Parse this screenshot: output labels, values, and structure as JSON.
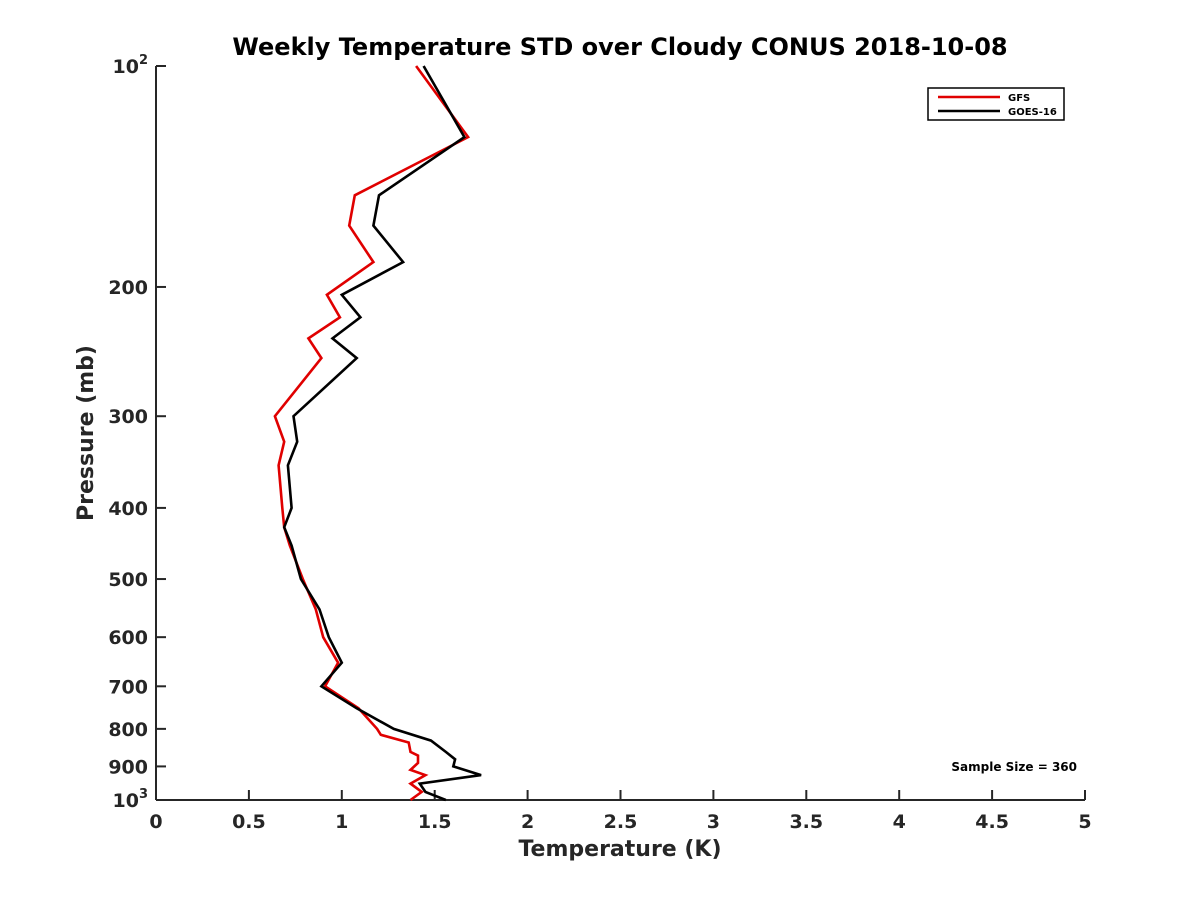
{
  "chart_data": {
    "type": "line",
    "title": "Weekly Temperature STD over Cloudy CONUS 2018-10-08",
    "xlabel": "Temperature (K)",
    "ylabel": "Pressure (mb)",
    "xlim": [
      0,
      5
    ],
    "ylim": [
      100,
      1000
    ],
    "y_scale": "log",
    "y_reversed": true,
    "x_ticks": [
      "0",
      "0.5",
      "1",
      "1.5",
      "2",
      "2.5",
      "3",
      "3.5",
      "4",
      "4.5",
      "5"
    ],
    "y_ticks": [
      {
        "value": 100,
        "base": "10",
        "exp": "2"
      },
      {
        "value": 200,
        "label": "200"
      },
      {
        "value": 300,
        "label": "300"
      },
      {
        "value": 400,
        "label": "400"
      },
      {
        "value": 500,
        "label": "500"
      },
      {
        "value": 600,
        "label": "600"
      },
      {
        "value": 700,
        "label": "700"
      },
      {
        "value": 800,
        "label": "800"
      },
      {
        "value": 900,
        "label": "900"
      },
      {
        "value": 1000,
        "base": "10",
        "exp": "3"
      }
    ],
    "legend_position": "top-right",
    "annotation": "Sample Size = 360",
    "series": [
      {
        "name": "GFS",
        "color": "#e00000",
        "points": [
          [
            1.4,
            100
          ],
          [
            1.68,
            125
          ],
          [
            1.07,
            150
          ],
          [
            1.04,
            165
          ],
          [
            1.17,
            185
          ],
          [
            0.92,
            205
          ],
          [
            0.99,
            220
          ],
          [
            0.82,
            235
          ],
          [
            0.89,
            250
          ],
          [
            0.64,
            300
          ],
          [
            0.69,
            325
          ],
          [
            0.66,
            350
          ],
          [
            0.68,
            400
          ],
          [
            0.69,
            425
          ],
          [
            0.72,
            450
          ],
          [
            0.79,
            500
          ],
          [
            0.86,
            550
          ],
          [
            0.9,
            600
          ],
          [
            0.98,
            650
          ],
          [
            0.91,
            700
          ],
          [
            1.09,
            750
          ],
          [
            1.19,
            800
          ],
          [
            1.21,
            815
          ],
          [
            1.36,
            835
          ],
          [
            1.37,
            860
          ],
          [
            1.41,
            870
          ],
          [
            1.41,
            890
          ],
          [
            1.37,
            910
          ],
          [
            1.45,
            925
          ],
          [
            1.37,
            950
          ],
          [
            1.43,
            975
          ],
          [
            1.37,
            1000
          ]
        ]
      },
      {
        "name": "GOES-16",
        "color": "#000000",
        "points": [
          [
            1.44,
            100
          ],
          [
            1.66,
            125
          ],
          [
            1.2,
            150
          ],
          [
            1.17,
            165
          ],
          [
            1.33,
            185
          ],
          [
            1.0,
            205
          ],
          [
            1.1,
            220
          ],
          [
            0.95,
            235
          ],
          [
            1.08,
            250
          ],
          [
            0.74,
            300
          ],
          [
            0.76,
            325
          ],
          [
            0.71,
            350
          ],
          [
            0.73,
            400
          ],
          [
            0.69,
            425
          ],
          [
            0.73,
            450
          ],
          [
            0.78,
            500
          ],
          [
            0.88,
            550
          ],
          [
            0.93,
            600
          ],
          [
            1.0,
            650
          ],
          [
            0.89,
            700
          ],
          [
            1.08,
            750
          ],
          [
            1.28,
            800
          ],
          [
            1.48,
            830
          ],
          [
            1.56,
            860
          ],
          [
            1.61,
            880
          ],
          [
            1.6,
            900
          ],
          [
            1.75,
            925
          ],
          [
            1.42,
            950
          ],
          [
            1.45,
            975
          ],
          [
            1.56,
            1000
          ]
        ]
      }
    ]
  }
}
